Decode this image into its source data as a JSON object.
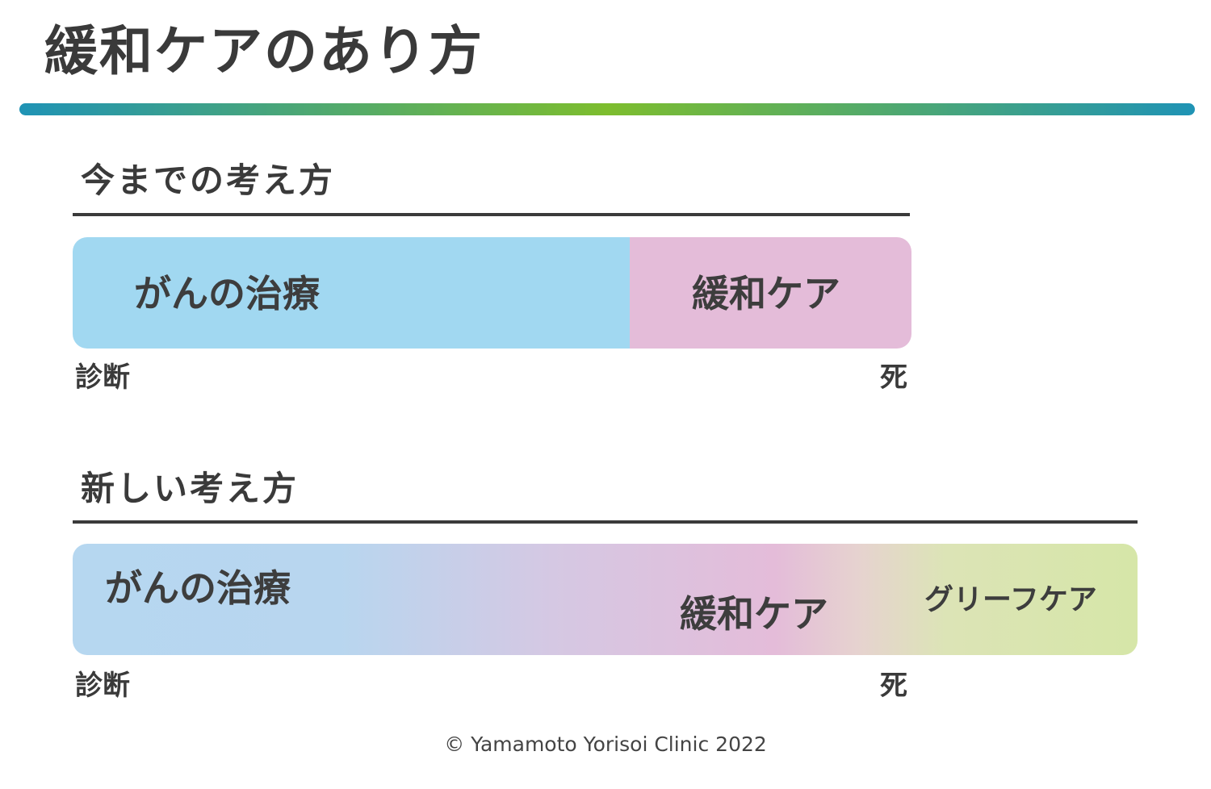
{
  "title": "緩和ケアのあり方",
  "colors": {
    "treatment_blue": "#a1d8f1",
    "palliative_pink": "#e4bcd9",
    "grief_green": "#d6e6a8",
    "text_dark": "#3a3a3a",
    "rule_gradient": [
      "#1f93b5",
      "#7dbd2e",
      "#1f93b5"
    ]
  },
  "old_approach": {
    "heading": "今までの考え方",
    "treatment_label": "がんの治療",
    "palliative_label": "緩和ケア",
    "start_label": "診断",
    "end_label": "死"
  },
  "new_approach": {
    "heading": "新しい考え方",
    "treatment_label": "がんの治療",
    "palliative_label": "緩和ケア",
    "grief_label": "グリーフケア",
    "start_label": "診断",
    "end_label": "死"
  },
  "copyright": "© Yamamoto Yorisoi Clinic 2022"
}
